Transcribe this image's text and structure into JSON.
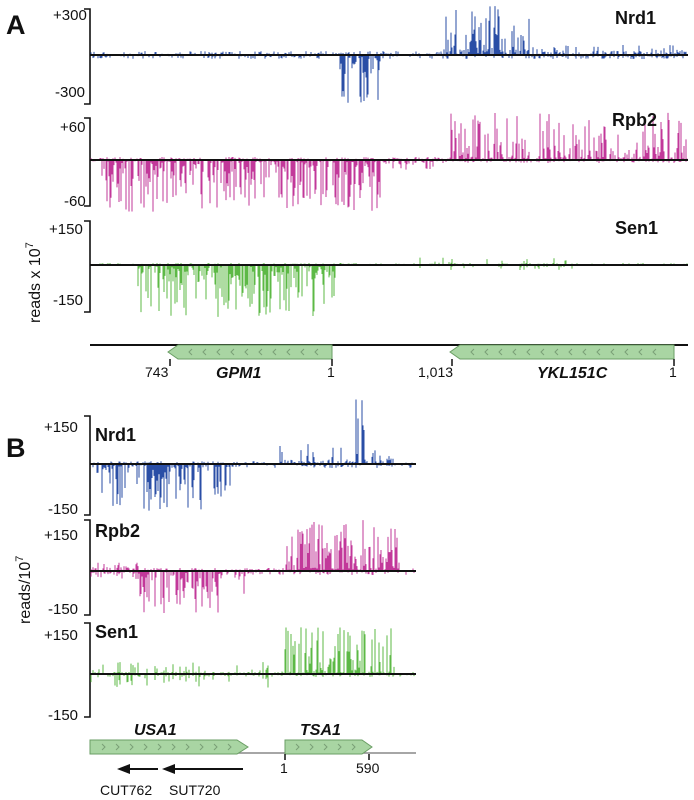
{
  "panels": {
    "a": {
      "letter": "A",
      "y_label": "reads x 10",
      "y_label_exp": "7",
      "tracks": [
        {
          "key": "nrd1",
          "name": "Nrd1",
          "color": "#2a4ea6",
          "label_color": "#1f7bbf",
          "top_tick": "+300",
          "bottom_tick": "-300"
        },
        {
          "key": "rpb2",
          "name": "Rpb2",
          "color": "#c2389a",
          "label_color": "#b43f9c",
          "top_tick": "+60",
          "bottom_tick": "-60"
        },
        {
          "key": "sen1",
          "name": "Sen1",
          "color": "#5db946",
          "label_color": "#43b34f",
          "top_tick": "+150",
          "bottom_tick": "-150"
        }
      ],
      "genes": [
        {
          "name": "GPM1",
          "start_label": "743",
          "end_label": "1"
        },
        {
          "name": "YKL151C",
          "start_label": "1,013",
          "end_label": "1"
        }
      ]
    },
    "b": {
      "letter": "B",
      "y_label": "reads/10",
      "y_label_exp": "7",
      "tracks": [
        {
          "key": "nrd1",
          "name": "Nrd1",
          "color": "#2a4ea6",
          "label_color": "#1f7bbf",
          "top_tick": "+150",
          "bottom_tick": "-150"
        },
        {
          "key": "rpb2",
          "name": "Rpb2",
          "color": "#c2389a",
          "label_color": "#b43f9c",
          "top_tick": "+150",
          "bottom_tick": "-150"
        },
        {
          "key": "sen1",
          "name": "Sen1",
          "color": "#5db946",
          "label_color": "#43b34f",
          "top_tick": "+150",
          "bottom_tick": "-150"
        }
      ],
      "genes": [
        {
          "name": "USA1",
          "start_label": "",
          "end_label": ""
        },
        {
          "name": "TSA1",
          "start_label": "1",
          "end_label": "590"
        }
      ],
      "transcripts": [
        {
          "name": "CUT762"
        },
        {
          "name": "SUT720"
        }
      ]
    }
  },
  "colors": {
    "gene_fill": "#a9d5a3",
    "gene_stroke": "#6a9e64",
    "axis": "#111111"
  }
}
